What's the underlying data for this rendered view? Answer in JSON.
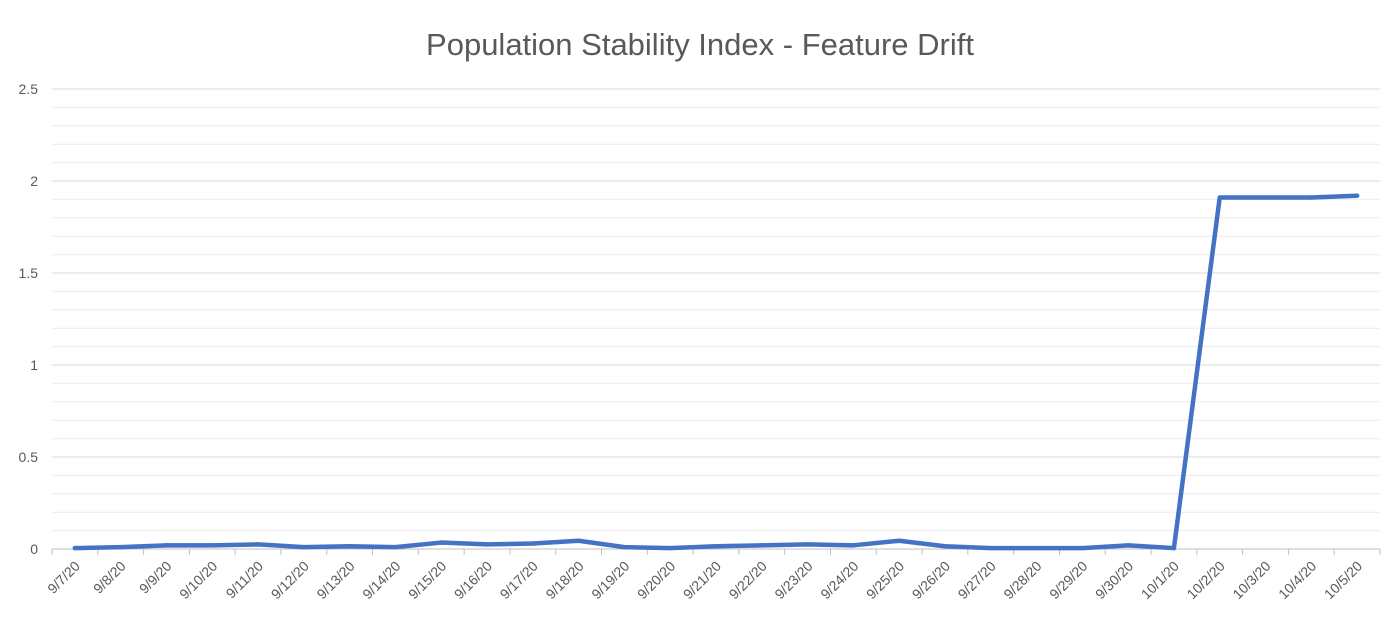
{
  "chart_data": {
    "type": "line",
    "title": "Population Stability Index - Feature Drift",
    "xlabel": "",
    "ylabel": "",
    "ylim": [
      0,
      2.5
    ],
    "y_ticks": [
      "0",
      "0.5",
      "1",
      "1.5",
      "2",
      "2.5"
    ],
    "y_tick_values": [
      0,
      0.5,
      1,
      1.5,
      2,
      2.5
    ],
    "grid": "major and minor horizontal gridlines",
    "legend": "none",
    "categories": [
      "9/7/20",
      "9/8/20",
      "9/9/20",
      "9/10/20",
      "9/11/20",
      "9/12/20",
      "9/13/20",
      "9/14/20",
      "9/15/20",
      "9/16/20",
      "9/17/20",
      "9/18/20",
      "9/19/20",
      "9/20/20",
      "9/21/20",
      "9/22/20",
      "9/23/20",
      "9/24/20",
      "9/25/20",
      "9/26/20",
      "9/27/20",
      "9/28/20",
      "9/29/20",
      "9/30/20",
      "10/1/20",
      "10/2/20",
      "10/3/20",
      "10/4/20",
      "10/5/20"
    ],
    "series": [
      {
        "values": [
          0.005,
          0.01,
          0.02,
          0.02,
          0.025,
          0.01,
          0.015,
          0.01,
          0.035,
          0.025,
          0.03,
          0.045,
          0.01,
          0.005,
          0.015,
          0.02,
          0.025,
          0.02,
          0.045,
          0.015,
          0.005,
          0.005,
          0.005,
          0.02,
          0.005,
          1.91,
          1.91,
          1.91,
          1.92
        ],
        "color": "#4472C4"
      }
    ]
  },
  "colors": {
    "line": "#4472C4",
    "major_grid": "#d9d9d9",
    "minor_grid": "#ececec",
    "text": "#595959",
    "axis": "#bfbfbf"
  }
}
